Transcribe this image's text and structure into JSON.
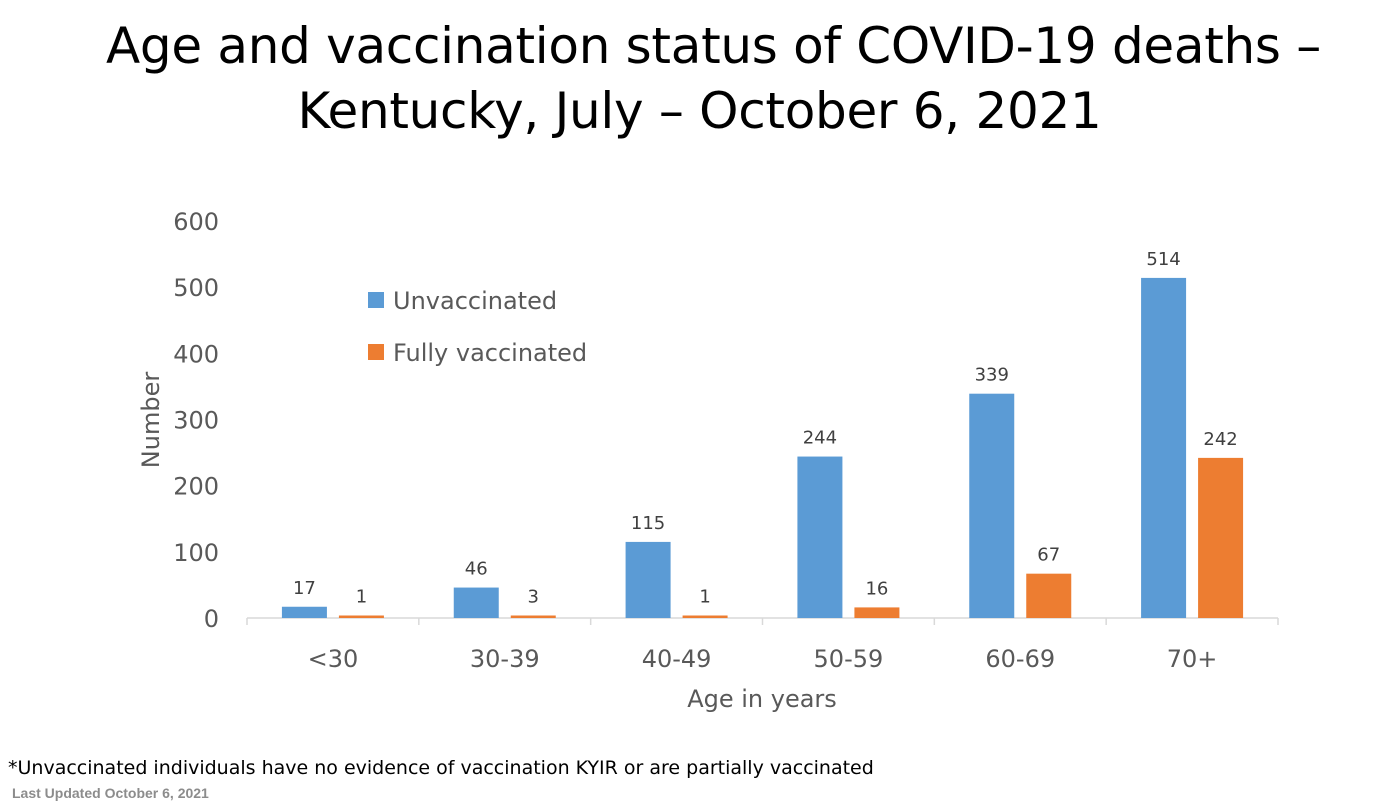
{
  "chart_data": {
    "type": "bar",
    "title_lines": [
      "Age and vaccination status of COVID-19 deaths –",
      "Kentucky, July – October 6, 2021"
    ],
    "xlabel": "Age in years",
    "ylabel": "Number",
    "ylim": [
      0,
      600
    ],
    "yticks": [
      0,
      100,
      200,
      300,
      400,
      500,
      600
    ],
    "categories": [
      "<30",
      "30-39",
      "40-49",
      "50-59",
      "60-69",
      "70+"
    ],
    "series": [
      {
        "name": "Unvaccinated",
        "color": "#5B9BD5",
        "values": [
          17,
          46,
          115,
          244,
          339,
          514
        ]
      },
      {
        "name": "Fully vaccinated",
        "color": "#ED7D31",
        "values": [
          1,
          3,
          1,
          16,
          67,
          242
        ]
      }
    ],
    "legend_position": "top-left",
    "grid": false,
    "data_labels": true
  },
  "footnote": "*Unvaccinated individuals have no evidence of vaccination KYIR or are partially vaccinated",
  "last_updated": "Last Updated October 6, 2021"
}
